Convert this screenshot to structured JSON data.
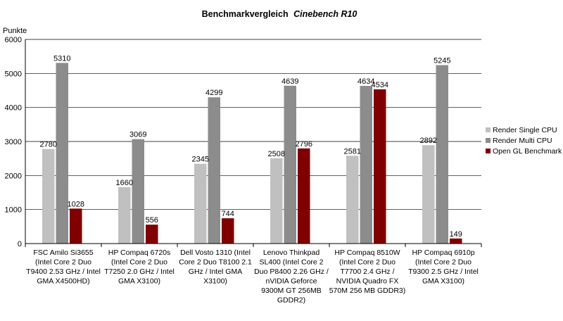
{
  "chart_data": {
    "type": "bar",
    "title": "Benchmarkvergleich",
    "title_emphasis": "Cinebench R10",
    "ylabel": "Punkte",
    "xlabel": "",
    "ylim": [
      0,
      6000
    ],
    "ytick_step": 1000,
    "grid": true,
    "legend_position": "right",
    "categories": [
      [
        "FSC Amilo Si3655",
        "(Intel Core 2 Duo",
        "T9400 2.53 GHz / Intel",
        "GMA X4500HD)"
      ],
      [
        "HP Compaq 6720s",
        "(Intel Core 2 Duo",
        "T7250 2.0 GHz / Intel",
        "GMA X3100)"
      ],
      [
        "Dell Vosto 1310 (Intel",
        "Core 2 Duo T8100 2.1",
        "GHz / Intel GMA",
        "X3100)"
      ],
      [
        "Lenovo Thinkpad",
        "SL400 (Intel Core 2",
        "Duo P8400 2.26 GHz /",
        "nVIDIA Geforce",
        "9300M GT 256MB",
        "GDDR2)"
      ],
      [
        "HP Compaq 8510W",
        "(Intel Core 2 Duo",
        "T7700 2.4 GHz /",
        "NVIDIA Quadro FX",
        "570M 256 MB GDDR3)"
      ],
      [
        "HP Compaq 6910p",
        "(Intel Core 2 Duo",
        "T9300 2.5 GHz / Intel",
        "GMA X3100)"
      ]
    ],
    "series": [
      {
        "name": "Render Single CPU",
        "color": "#c0c0c0",
        "values": [
          2780,
          1660,
          2345,
          2508,
          2581,
          2892
        ]
      },
      {
        "name": "Render Multi CPU",
        "color": "#8c8c8c",
        "values": [
          5310,
          3069,
          4299,
          4639,
          4634,
          5245
        ]
      },
      {
        "name": "Open GL Benchmark",
        "color": "#800000",
        "values": [
          1028,
          556,
          744,
          2796,
          4534,
          149
        ]
      }
    ]
  }
}
